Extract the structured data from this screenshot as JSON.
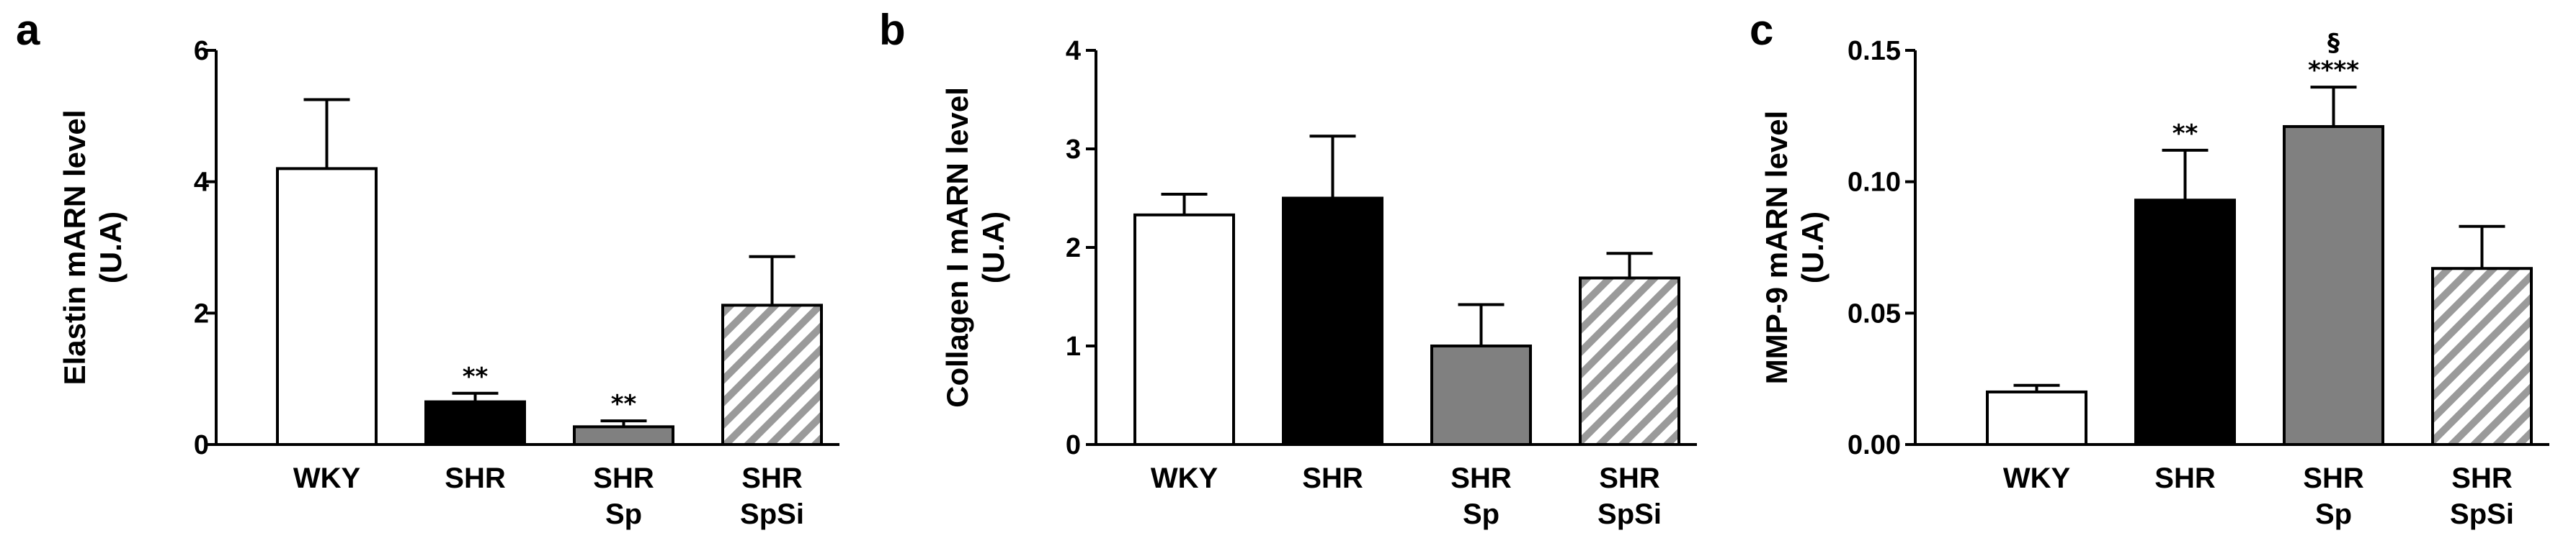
{
  "chart_data": [
    {
      "type": "bar",
      "panel": "a",
      "ylabel": [
        "Elastin mARN level",
        "(U.A)"
      ],
      "ylim": [
        0,
        6
      ],
      "yticks": [
        "0",
        "2",
        "4",
        "6"
      ],
      "ytick_values": [
        0,
        2,
        4,
        6
      ],
      "categories": [
        [
          "WKY"
        ],
        [
          "SHR"
        ],
        [
          "SHR",
          "Sp"
        ],
        [
          "SHR",
          "SpSi"
        ]
      ],
      "values": [
        4.2,
        0.65,
        0.27,
        2.12
      ],
      "errors": [
        1.05,
        0.13,
        0.09,
        0.74
      ],
      "annotations": [
        [],
        [
          "**"
        ],
        [
          "**"
        ],
        []
      ],
      "fills": [
        "white",
        "black",
        "gray",
        "hatch"
      ]
    },
    {
      "type": "bar",
      "panel": "b",
      "ylabel": [
        "Collagen I mARN level",
        "(U.A)"
      ],
      "ylim": [
        0,
        4
      ],
      "yticks": [
        "0",
        "1",
        "2",
        "3",
        "4"
      ],
      "ytick_values": [
        0,
        1,
        2,
        3,
        4
      ],
      "categories": [
        [
          "WKY"
        ],
        [
          "SHR"
        ],
        [
          "SHR",
          "Sp"
        ],
        [
          "SHR",
          "SpSi"
        ]
      ],
      "values": [
        2.33,
        2.5,
        1.0,
        1.69
      ],
      "errors": [
        0.21,
        0.63,
        0.42,
        0.25
      ],
      "annotations": [
        [],
        [],
        [],
        []
      ],
      "fills": [
        "white",
        "black",
        "gray",
        "hatch"
      ]
    },
    {
      "type": "bar",
      "panel": "c",
      "ylabel": [
        "MMP-9 mARN level",
        "(U.A)"
      ],
      "ylim": [
        0,
        0.15
      ],
      "yticks": [
        "0.00",
        "0.05",
        "0.10",
        "0.15"
      ],
      "ytick_values": [
        0,
        0.05,
        0.1,
        0.15
      ],
      "categories": [
        [
          "WKY"
        ],
        [
          "SHR"
        ],
        [
          "SHR",
          "Sp"
        ],
        [
          "SHR",
          "SpSi"
        ]
      ],
      "values": [
        0.02,
        0.093,
        0.121,
        0.067
      ],
      "errors": [
        0.0025,
        0.019,
        0.015,
        0.016
      ],
      "annotations": [
        [],
        [
          "**"
        ],
        [
          "§",
          "****"
        ],
        []
      ],
      "fills": [
        "white",
        "black",
        "gray",
        "hatch"
      ]
    }
  ],
  "colors": {
    "axis": "#000000",
    "black_bar": "#000000",
    "gray_bar": "#808080",
    "hatch_bg": "#ffffff",
    "hatch_stripe": "#9a9a9a"
  }
}
